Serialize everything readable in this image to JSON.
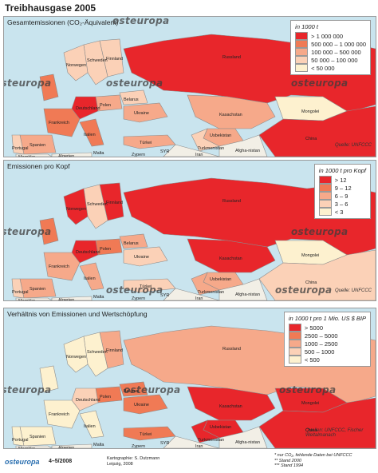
{
  "title": "Treibhausgase 2005",
  "watermark": "osteuropa",
  "panels": [
    {
      "title": "Gesamtemissionen (CO₂-Äquivalent)",
      "legend_title": "in 1000 t",
      "legend": [
        {
          "label": "> 1 000 000",
          "color": "#e8262b"
        },
        {
          "label": "500 000 – 1 000 000",
          "color": "#f07a55"
        },
        {
          "label": "100 000 – 500 000",
          "color": "#f6a98a"
        },
        {
          "label": "50 000 – 100 000",
          "color": "#fbd1b7"
        },
        {
          "label": "< 50 000",
          "color": "#fdf1cf"
        }
      ],
      "source": "Quelle: UNFCCC",
      "labels": {
        "norwegen": "Norwegen",
        "schweden": "Schweden",
        "finnland": "Finnland",
        "russland": "Russland",
        "mongolei": "Mongolei",
        "china": "China",
        "kasachstan": "Kasachstan",
        "usbekistan": "Usbekistan",
        "turkmenistan": "Turkmenistan",
        "ukraine": "Ukraine",
        "belarus": "Belarus",
        "polen": "Polen",
        "deutschland": "Deutschland",
        "frankreich": "Frankreich",
        "spanien": "Spanien",
        "portugal": "Portugal",
        "italien": "Italien",
        "tuerkei": "Türkei",
        "iran": "Iran",
        "marokko": "Marokko",
        "algerien": "Algerien",
        "malta": "Malta",
        "zypern": "Zypern",
        "syrien": "SYR",
        "afghanistan": "Afgha-nistan"
      }
    },
    {
      "title": "Emissionen pro Kopf",
      "legend_title": "in 1000 t pro Kopf",
      "legend": [
        {
          "label": "> 12",
          "color": "#e8262b"
        },
        {
          "label": "9 – 12",
          "color": "#f07a55"
        },
        {
          "label": "6 – 9",
          "color": "#f6a98a"
        },
        {
          "label": "3 – 6",
          "color": "#fbd1b7"
        },
        {
          "label": "< 3",
          "color": "#fdf1cf"
        }
      ],
      "source": "Quelle: UNFCCC",
      "labels": {
        "norwegen": "Norwegen",
        "schweden": "Schweden",
        "finnland": "Finnland",
        "russland": "Russland",
        "mongolei": "Mongolei",
        "china": "China",
        "kasachstan": "Kasachstan",
        "usbekistan": "Usbekistan",
        "turkmenistan": "Turkmenistan",
        "ukraine": "Ukraine",
        "belarus": "Belarus",
        "polen": "Polen",
        "deutschland": "Deutschland",
        "frankreich": "Frankreich",
        "spanien": "Spanien",
        "portugal": "Portugal",
        "italien": "Italien",
        "tuerkei": "Türkei",
        "iran": "Iran",
        "marokko": "Marokko",
        "algerien": "Algerien",
        "malta": "Malta",
        "zypern": "Zypern",
        "syrien": "SYR",
        "afghanistan": "Afgha-nistan"
      }
    },
    {
      "title": "Verhältnis von Emissionen und Wertschöpfung",
      "legend_title": "in 1000 t pro 1 Mio. US $ BIP",
      "legend": [
        {
          "label": "> 5000",
          "color": "#e8262b"
        },
        {
          "label": "2500 – 5000",
          "color": "#f07a55"
        },
        {
          "label": "1000 – 2500",
          "color": "#f6a98a"
        },
        {
          "label": "500 – 1000",
          "color": "#fbd1b7"
        },
        {
          "label": "< 500",
          "color": "#fdf1cf"
        }
      ],
      "source": "Quellen: UNFCCC, Fischer Weltalmanach",
      "labels": {
        "norwegen": "Norwegen",
        "schweden": "Schweden",
        "finnland": "Finnland",
        "russland": "Russland",
        "mongolei": "Mongolei",
        "china": "China",
        "kasachstan": "Kasachstan",
        "usbekistan": "Usbekistan",
        "turkmenistan": "Turkmenistan",
        "ukraine": "Ukraine",
        "belarus": "Belarus",
        "polen": "Polen",
        "deutschland": "Deutschland",
        "frankreich": "Frankreich",
        "spanien": "Spanien",
        "portugal": "Portugal",
        "italien": "Italien",
        "tuerkei": "Türkei",
        "iran": "Iran",
        "marokko": "Marokko",
        "algerien": "Algerien",
        "malta": "Malta",
        "zypern": "Zypern",
        "syrien": "SYR",
        "afghanistan": "Afgha-nistan"
      }
    }
  ],
  "footer": {
    "logo": "osteuropa",
    "issue": "4–5/2008",
    "credit_line1": "Kartographie: S. Dutzmann",
    "credit_line2": "Leipzig, 2008",
    "note1": "*    nur CO₂, fehlende Daten bei UNFCCC",
    "note2": "**   Stand 2000",
    "note3": "***  Stand 1994"
  },
  "colors": {
    "sea": "#c9e4ee",
    "no_data": "#f2efe6",
    "border": "#8c8c8c"
  }
}
